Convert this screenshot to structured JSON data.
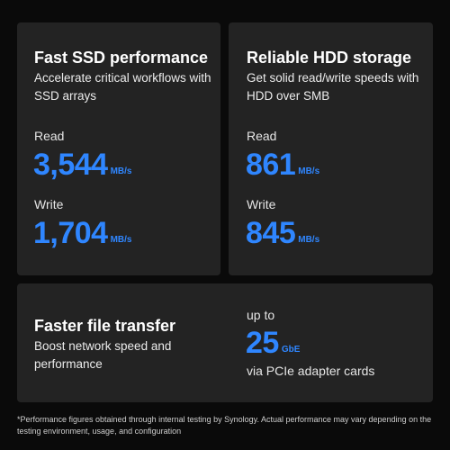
{
  "cards": [
    {
      "title": "Fast SSD performance",
      "subtitle": "Accelerate critical workflows with SSD arrays",
      "read_label": "Read",
      "read_value": "3,544",
      "read_unit": "MB/s",
      "write_label": "Write",
      "write_value": "1,704",
      "write_unit": "MB/s"
    },
    {
      "title": "Reliable HDD storage",
      "subtitle": "Get solid read/write speeds with HDD over SMB",
      "read_label": "Read",
      "read_value": "861",
      "read_unit": "MB/s",
      "write_label": "Write",
      "write_value": "845",
      "write_unit": "MB/s"
    }
  ],
  "network": {
    "title": "Faster file transfer",
    "subtitle": "Boost network speed and performance",
    "prefix": "up to",
    "value": "25",
    "unit": "GbE",
    "suffix": "via PCIe adapter cards"
  },
  "footnote": "*Performance figures obtained through internal testing by Synology. Actual performance may vary depending on the testing environment, usage, and configuration",
  "colors": {
    "background": "#0a0a0a",
    "card": "#232323",
    "accent": "#2f86ff",
    "text": "#ffffff"
  }
}
